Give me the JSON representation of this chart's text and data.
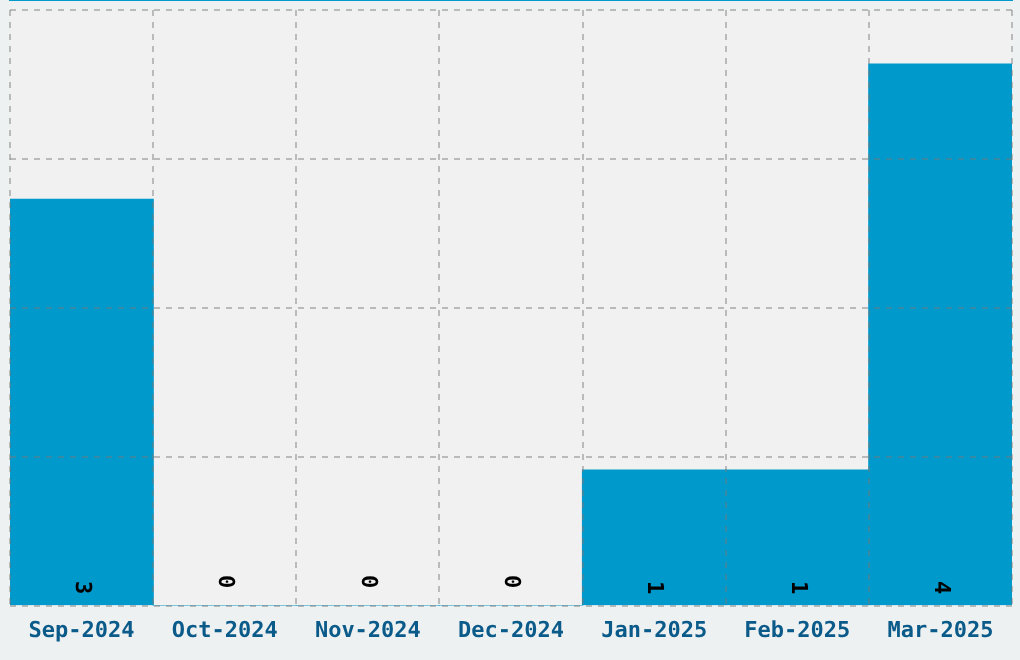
{
  "chart_data": {
    "type": "bar",
    "categories": [
      "Sep-2024",
      "Oct-2024",
      "Nov-2024",
      "Dec-2024",
      "Jan-2025",
      "Feb-2025",
      "Mar-2025"
    ],
    "values": [
      3,
      0,
      0,
      0,
      1,
      1,
      4
    ],
    "color": "#0099cc",
    "ylim": [
      0,
      4.4
    ],
    "yticks": [
      {
        "value": 0,
        "label": null
      },
      {
        "value": 1.1,
        "label": null
      },
      {
        "value": 2.2,
        "label": null
      },
      {
        "value": 3.3,
        "label": null
      },
      {
        "value": 4.4,
        "label": null
      }
    ],
    "grid": true,
    "tick_labels": "x",
    "data_labels": true
  }
}
